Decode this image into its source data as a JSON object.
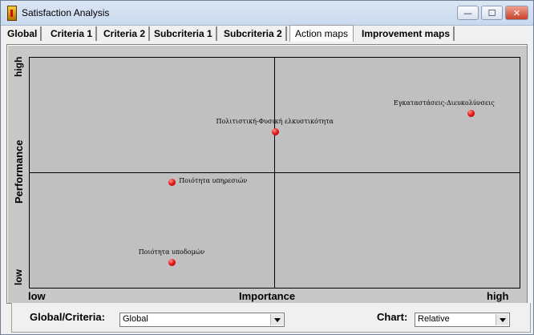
{
  "window": {
    "title": "Satisfaction Analysis",
    "controls": {
      "minimize": "—",
      "maximize": "☐",
      "close": "✕"
    },
    "icon": "thermometer-icon"
  },
  "tabs": [
    {
      "label": "Global",
      "active": false
    },
    {
      "label": "Criteria 1",
      "active": false
    },
    {
      "label": "Criteria 2",
      "active": false
    },
    {
      "label": "Subcriteria 1",
      "active": false
    },
    {
      "label": "Subcriteria 2",
      "active": false
    },
    {
      "label": "Action maps",
      "active": true
    },
    {
      "label": "Improvement maps",
      "active": false
    }
  ],
  "chart_data": {
    "type": "scatter",
    "title": "",
    "xlabel": "Importance",
    "ylabel": "Performance",
    "x_ticks": [
      "low",
      "high"
    ],
    "y_ticks": [
      "low",
      "high"
    ],
    "xlim": [
      0,
      1
    ],
    "ylim": [
      0,
      1
    ],
    "grid": "quadrant lines at center",
    "points": [
      {
        "label": "Εγκαταστάσεις-Διευκολύνσεις",
        "x": 0.9,
        "y": 0.76
      },
      {
        "label": "Πολιτιστική-Φυσική ελκυστικότητα",
        "x": 0.5,
        "y": 0.68
      },
      {
        "label": "Ποιότητα υπηρεσιών",
        "x": 0.29,
        "y": 0.46
      },
      {
        "label": "Ποιότητα υποδομών",
        "x": 0.29,
        "y": 0.11
      }
    ],
    "point_color": "#e01010"
  },
  "controls": {
    "global_criteria": {
      "label": "Global/Criteria:",
      "value": "Global"
    },
    "chart": {
      "label": "Chart:",
      "value": "Relative"
    }
  }
}
